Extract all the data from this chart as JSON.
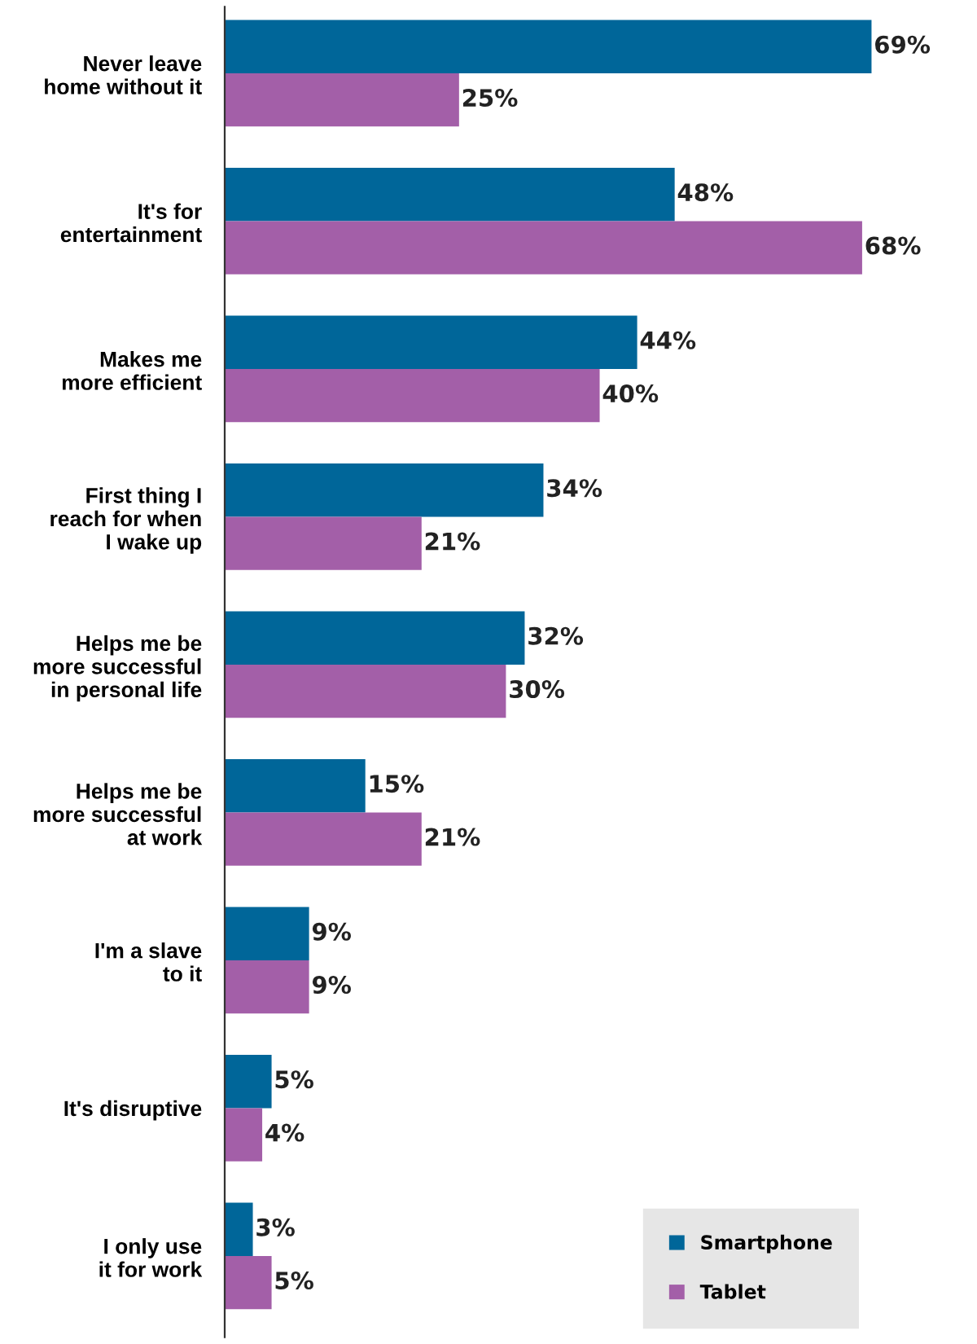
{
  "chart_data": {
    "type": "bar",
    "orientation": "horizontal",
    "categories": [
      "Never leave\nhome without it",
      "It's for\nentertainment",
      "Makes me\nmore efficient",
      "First thing I\nreach for when\nI wake up",
      "Helps me be\nmore successful\nin personal life",
      "Helps me be\nmore successful\nat work",
      "I'm a slave\nto it",
      "It's disruptive",
      "I only use\nit for work"
    ],
    "series": [
      {
        "name": "Smartphone",
        "color": "#006699",
        "values": [
          69,
          48,
          44,
          34,
          32,
          15,
          9,
          5,
          3
        ],
        "value_labels": [
          "69%",
          "48%",
          "44%",
          "34%",
          "32%",
          "15%",
          "9%",
          "5%",
          "3%"
        ]
      },
      {
        "name": "Tablet",
        "color": "#a35fa8",
        "values": [
          25,
          68,
          40,
          21,
          30,
          21,
          9,
          4,
          5
        ],
        "value_labels": [
          "25%",
          "68%",
          "40%",
          "21%",
          "30%",
          "21%",
          "9%",
          "4%",
          "5%"
        ]
      }
    ],
    "legend": "bottom right",
    "grid": false,
    "tick_labels": "y"
  }
}
